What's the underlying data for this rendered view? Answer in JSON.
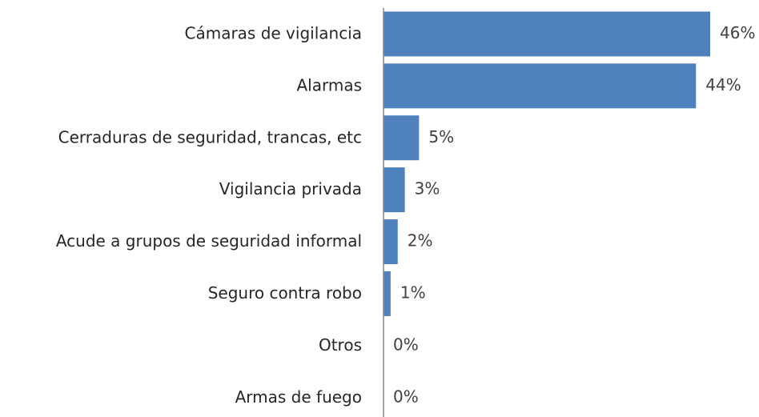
{
  "chart_data": {
    "type": "bar",
    "orientation": "horizontal",
    "categories": [
      "Cámaras de vigilancia",
      "Alarmas",
      "Cerraduras de seguridad, trancas, etc",
      "Vigilancia privada",
      "Acude a grupos de seguridad informal",
      "Seguro contra robo",
      "Otros",
      "Armas de fuego"
    ],
    "values": [
      46,
      44,
      5,
      3,
      2,
      1,
      0,
      0
    ],
    "value_labels": [
      "46%",
      "44%",
      "5%",
      "3%",
      "2%",
      "1%",
      "0%",
      "0%"
    ],
    "color": "#4f81bd"
  }
}
